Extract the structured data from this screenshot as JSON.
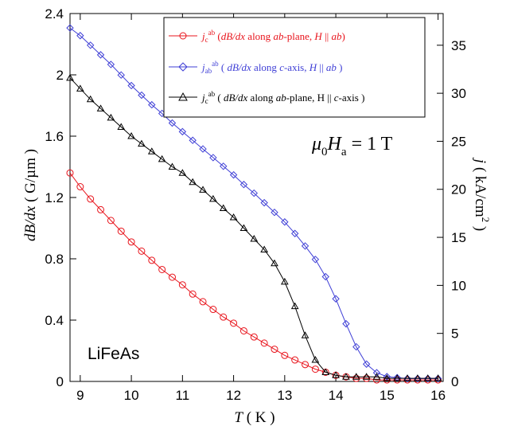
{
  "chart_data": {
    "type": "scatter",
    "xlabel": {
      "var": "T",
      "unit": " ( K )"
    },
    "ylabel_left": {
      "var": "dB/dx",
      "unit": " ( G/µm )"
    },
    "ylabel_right": {
      "var": "j",
      "unit": " ( kA/cm",
      "sup": "2",
      "tail": " )"
    },
    "xlim": [
      8.8,
      16.1
    ],
    "ylim_left": [
      0,
      2.4
    ],
    "ylim_right": [
      0,
      38.3
    ],
    "xticks": [
      9,
      10,
      11,
      12,
      13,
      14,
      15,
      16
    ],
    "yticks_left": [
      "0",
      "0.4",
      "0.8",
      "1.2",
      "1.6",
      "2",
      "2.4"
    ],
    "yticks_left_values": [
      0,
      0.4,
      0.8,
      1.2,
      1.6,
      2.0,
      2.4
    ],
    "yticks_right": [
      0,
      5,
      10,
      15,
      20,
      25,
      30,
      35
    ],
    "annotation_sample": "LiFeAs",
    "annotation_field": {
      "mu": "μ",
      "sub0": "0",
      "H": "H",
      "suba": "a",
      "rest": " = 1 T"
    },
    "series": [
      {
        "legend": {
          "j": "j",
          "sub": "c",
          "sup": "ab",
          "a": " (",
          "b": "dB/dx",
          "c": " along ",
          "d": "ab",
          "e": "-plane, ",
          "f": "H",
          "g": " || ",
          "h": "ab",
          "i": ")"
        },
        "color": "#e8141c",
        "marker": "circle",
        "axis": "left",
        "x": [
          8.8,
          9.0,
          9.2,
          9.4,
          9.6,
          9.8,
          10.0,
          10.2,
          10.4,
          10.6,
          10.8,
          11.0,
          11.2,
          11.4,
          11.6,
          11.8,
          12.0,
          12.2,
          12.4,
          12.6,
          12.8,
          13.0,
          13.2,
          13.4,
          13.6,
          13.8,
          14.0,
          14.2,
          14.4,
          14.6,
          14.8,
          15.0,
          15.2,
          15.4,
          15.6,
          15.8,
          16.0
        ],
        "y": [
          1.36,
          1.27,
          1.19,
          1.12,
          1.05,
          0.98,
          0.91,
          0.85,
          0.79,
          0.73,
          0.68,
          0.63,
          0.57,
          0.52,
          0.47,
          0.42,
          0.38,
          0.33,
          0.29,
          0.25,
          0.21,
          0.17,
          0.14,
          0.11,
          0.08,
          0.06,
          0.04,
          0.03,
          0.02,
          0.02,
          0.01,
          0.01,
          0.01,
          0.01,
          0.01,
          0.01,
          0.01
        ]
      },
      {
        "legend": {
          "j": "j",
          "sub": "ab",
          "sup": "ab",
          "a": " ( ",
          "b": "dB/dx",
          "c": " along ",
          "d": "c",
          "e": "-axis, ",
          "f": "H",
          "g": " || ",
          "h": "ab",
          "i": " )"
        },
        "color": "#3f3fd6",
        "marker": "diamond",
        "axis": "right",
        "x": [
          8.8,
          9.0,
          9.2,
          9.4,
          9.6,
          9.8,
          10.0,
          10.2,
          10.4,
          10.6,
          10.8,
          11.0,
          11.2,
          11.4,
          11.6,
          11.8,
          12.0,
          12.2,
          12.4,
          12.6,
          12.8,
          13.0,
          13.2,
          13.4,
          13.6,
          13.8,
          14.0,
          14.2,
          14.4,
          14.6,
          14.8,
          15.0,
          15.2,
          15.4,
          15.6,
          15.8,
          16.0
        ],
        "y": [
          36.8,
          36.0,
          35.0,
          34.0,
          33.0,
          31.9,
          30.8,
          29.8,
          28.8,
          27.9,
          26.9,
          26.0,
          25.1,
          24.2,
          23.3,
          22.4,
          21.5,
          20.5,
          19.6,
          18.6,
          17.6,
          16.6,
          15.4,
          14.1,
          12.7,
          10.9,
          8.6,
          6.0,
          3.6,
          1.8,
          0.9,
          0.5,
          0.4,
          0.3,
          0.3,
          0.3,
          0.3
        ]
      },
      {
        "legend": {
          "j": "j",
          "sub": "c",
          "sup": "ab",
          "a": " ( ",
          "b": "dB/dx",
          "c": " along ",
          "d": "ab",
          "e": "-plane, H || ",
          "f": "c",
          "g": "-axis )",
          "h": "",
          "i": ""
        },
        "color": "#000000",
        "marker": "triangle",
        "axis": "left",
        "x": [
          8.8,
          9.0,
          9.2,
          9.4,
          9.6,
          9.8,
          10.0,
          10.2,
          10.4,
          10.6,
          10.8,
          11.0,
          11.2,
          11.4,
          11.6,
          11.8,
          12.0,
          12.2,
          12.4,
          12.6,
          12.8,
          13.0,
          13.2,
          13.4,
          13.6,
          13.8,
          14.0,
          14.2,
          14.4,
          14.6,
          14.8,
          15.0,
          15.2,
          15.4,
          15.6,
          15.8,
          16.0
        ],
        "y": [
          1.98,
          1.91,
          1.84,
          1.78,
          1.72,
          1.66,
          1.6,
          1.55,
          1.5,
          1.45,
          1.4,
          1.36,
          1.3,
          1.25,
          1.19,
          1.13,
          1.07,
          1.0,
          0.93,
          0.86,
          0.77,
          0.65,
          0.49,
          0.3,
          0.14,
          0.06,
          0.04,
          0.03,
          0.03,
          0.03,
          0.03,
          0.02,
          0.02,
          0.02,
          0.02,
          0.02,
          0.02
        ]
      }
    ]
  }
}
